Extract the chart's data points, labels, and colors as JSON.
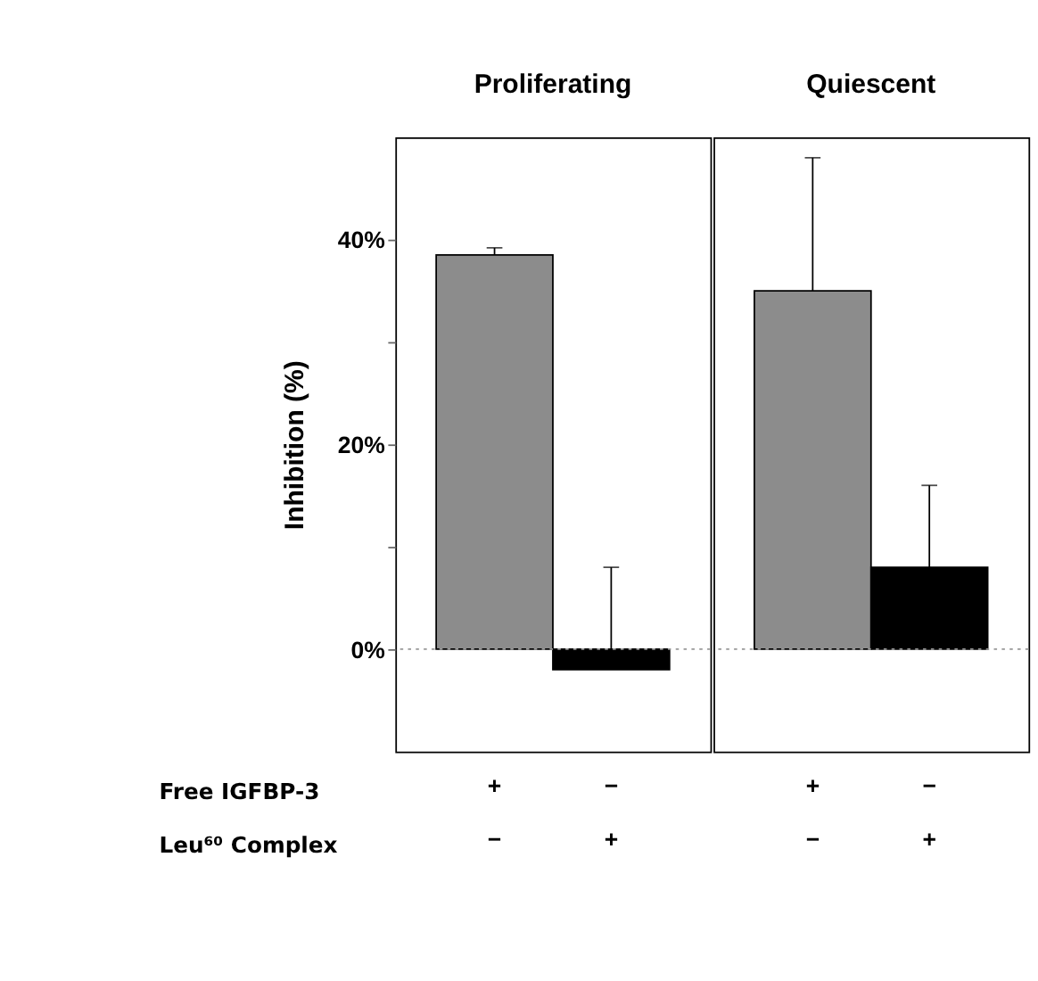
{
  "chart_data": [
    {
      "type": "bar",
      "title": "Proliferating",
      "ylabel": "Inhibition (%)",
      "categories": [
        "+\n−",
        "−\n+"
      ],
      "annotations": [
        "Free IGFBP-3",
        "Leu⁶⁰ Complex"
      ],
      "series": [
        {
          "values": [
            38.5,
            -2
          ],
          "colors": [
            "#8c8c8c",
            "#000000"
          ],
          "errors": [
            [
              38.5,
              39.2
            ],
            [
              -2,
              8
            ]
          ]
        }
      ],
      "ylim": [
        -10,
        50
      ],
      "yticks": [
        {
          "value": 0,
          "label": "0%"
        },
        {
          "value": 10,
          "label": null
        },
        {
          "value": 20,
          "label": "20%"
        },
        {
          "value": 30,
          "label": null
        },
        {
          "value": 40,
          "label": "40%"
        }
      ],
      "ref_lines": [
        {
          "axis": "y",
          "value": 0,
          "color": "#999999",
          "line_style": "dotted"
        }
      ],
      "grid": false
    },
    {
      "type": "bar",
      "title": "Quiescent",
      "categories": [
        "+\n−",
        "−\n+"
      ],
      "series": [
        {
          "values": [
            35,
            8
          ],
          "colors": [
            "#8c8c8c",
            "#000000"
          ],
          "errors": [
            [
              35,
              48
            ],
            [
              8,
              16
            ]
          ]
        }
      ],
      "ylim": [
        -10,
        50
      ],
      "ref_lines": [
        {
          "axis": "y",
          "value": 0,
          "color": "#999999",
          "line_style": "dotted"
        }
      ],
      "grid": false,
      "tick_labels": "x"
    }
  ]
}
